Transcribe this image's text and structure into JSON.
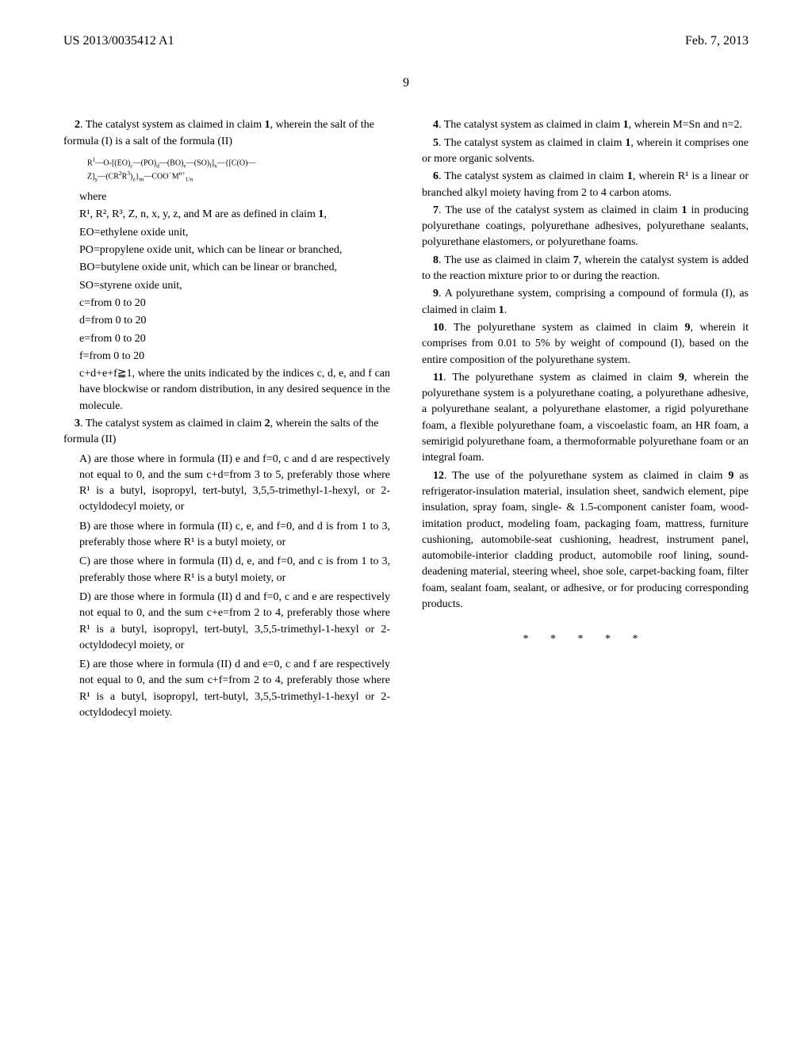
{
  "header": {
    "left": "US 2013/0035412 A1",
    "right": "Feb. 7, 2013"
  },
  "page_number": "9",
  "left_column": {
    "claim2_intro": ". The catalyst system as claimed in claim ",
    "claim2_cont": ", wherein the salt of the formula (I) is a salt of the formula (II)",
    "formula": "R¹—O-[(EO)_c—(PO)_d—(BO)_e—(SO)_f]_x—{[C(O)—Z]_y—(CR²R³)_z}_m—COO⁻M^{n+}_{1/n}",
    "where": "where",
    "def1": "R¹, R², R³, Z, n, x, y, z, and M are as defined in claim ",
    "def1b": ",",
    "def2": "EO=ethylene oxide unit,",
    "def3": "PO=propylene oxide unit, which can be linear or branched,",
    "def4": "BO=butylene oxide unit, which can be linear or branched,",
    "def5": "SO=styrene oxide unit,",
    "def6": "c=from 0 to 20",
    "def7": "d=from 0 to 20",
    "def8": "e=from 0 to 20",
    "def9": "f=from 0 to 20",
    "def10": "c+d+e+f≧1, where the units indicated by the indices c, d, e, and f can have blockwise or random distribution, in any desired sequence in the molecule.",
    "claim3_intro": ". The catalyst system as claimed in claim ",
    "claim3_cont": ", wherein the salts of the formula (II)",
    "itemA": "A) are those where in formula (II) e and f=0, c and d are respectively not equal to 0, and the sum c+d=from 3 to 5, preferably those where R¹ is a butyl, isopropyl, tert-butyl, 3,5,5-trimethyl-1-hexyl, or 2-octyldodecyl moiety, or",
    "itemB": "B) are those where in formula (II) c, e, and f=0, and d is from 1 to 3, preferably those where R¹ is a butyl moiety, or",
    "itemC": "C) are those where in formula (II) d, e, and f=0, and c is from 1 to 3, preferably those where R¹ is a butyl moiety, or",
    "itemD": "D) are those where in formula (II) d and f=0, c and e are respectively not equal to 0, and the sum c+e=from 2 to 4, preferably those where R¹ is a butyl, isopropyl, tert-butyl, 3,5,5-trimethyl-1-hexyl or 2-octyldodecyl moiety, or",
    "itemE": "E) are those where in formula (II) d and e=0, c and f are respectively not equal to 0, and the sum c+f=from 2 to 4, preferably those where R¹ is a butyl, isopropyl, tert-butyl, 3,5,5-trimethyl-1-hexyl or 2-octyldodecyl moiety."
  },
  "right_column": {
    "claim4": ". The catalyst system as claimed in claim ",
    "claim4b": ", wherein M=Sn and n=2.",
    "claim5": ". The catalyst system as claimed in claim ",
    "claim5b": ", wherein it comprises one or more organic solvents.",
    "claim6": ". The catalyst system as claimed in claim ",
    "claim6b": ", wherein R¹ is a linear or branched alkyl moiety having from 2 to 4 carbon atoms.",
    "claim7": ". The use of the catalyst system as claimed in claim ",
    "claim7b": " in producing polyurethane coatings, polyurethane adhesives, polyurethane sealants, polyurethane elastomers, or polyurethane foams.",
    "claim8": ". The use as claimed in claim ",
    "claim8b": ", wherein the catalyst system is added to the reaction mixture prior to or during the reaction.",
    "claim9": ". A polyurethane system, comprising a compound of formula (I), as claimed in claim ",
    "claim9b": ".",
    "claim10": ". The polyurethane system as claimed in claim ",
    "claim10b": ", wherein it comprises from 0.01 to 5% by weight of compound (I), based on the entire composition of the polyurethane system.",
    "claim11": ". The polyurethane system as claimed in claim ",
    "claim11b": ", wherein the polyurethane system is a polyurethane coating, a polyurethane adhesive, a polyurethane sealant, a polyurethane elastomer, a rigid polyurethane foam, a flexible polyurethane foam, a viscoelastic foam, an HR foam, a semirigid polyurethane foam, a thermoformable polyurethane foam or an integral foam.",
    "claim12": ". The use of the polyurethane system as claimed in claim ",
    "claim12b": " as refrigerator-insulation material, insulation sheet, sandwich element, pipe insulation, spray foam, single- & 1.5-component canister foam, wood-imitation product, modeling foam, packaging foam, mattress, furniture cushioning, automobile-seat cushioning, headrest, instrument panel, automobile-interior cladding product, automobile roof lining, sound-deadening material, steering wheel, shoe sole, carpet-backing foam, filter foam, sealant foam, sealant, or adhesive, or for producing corresponding products."
  },
  "stars": "* * * * *"
}
